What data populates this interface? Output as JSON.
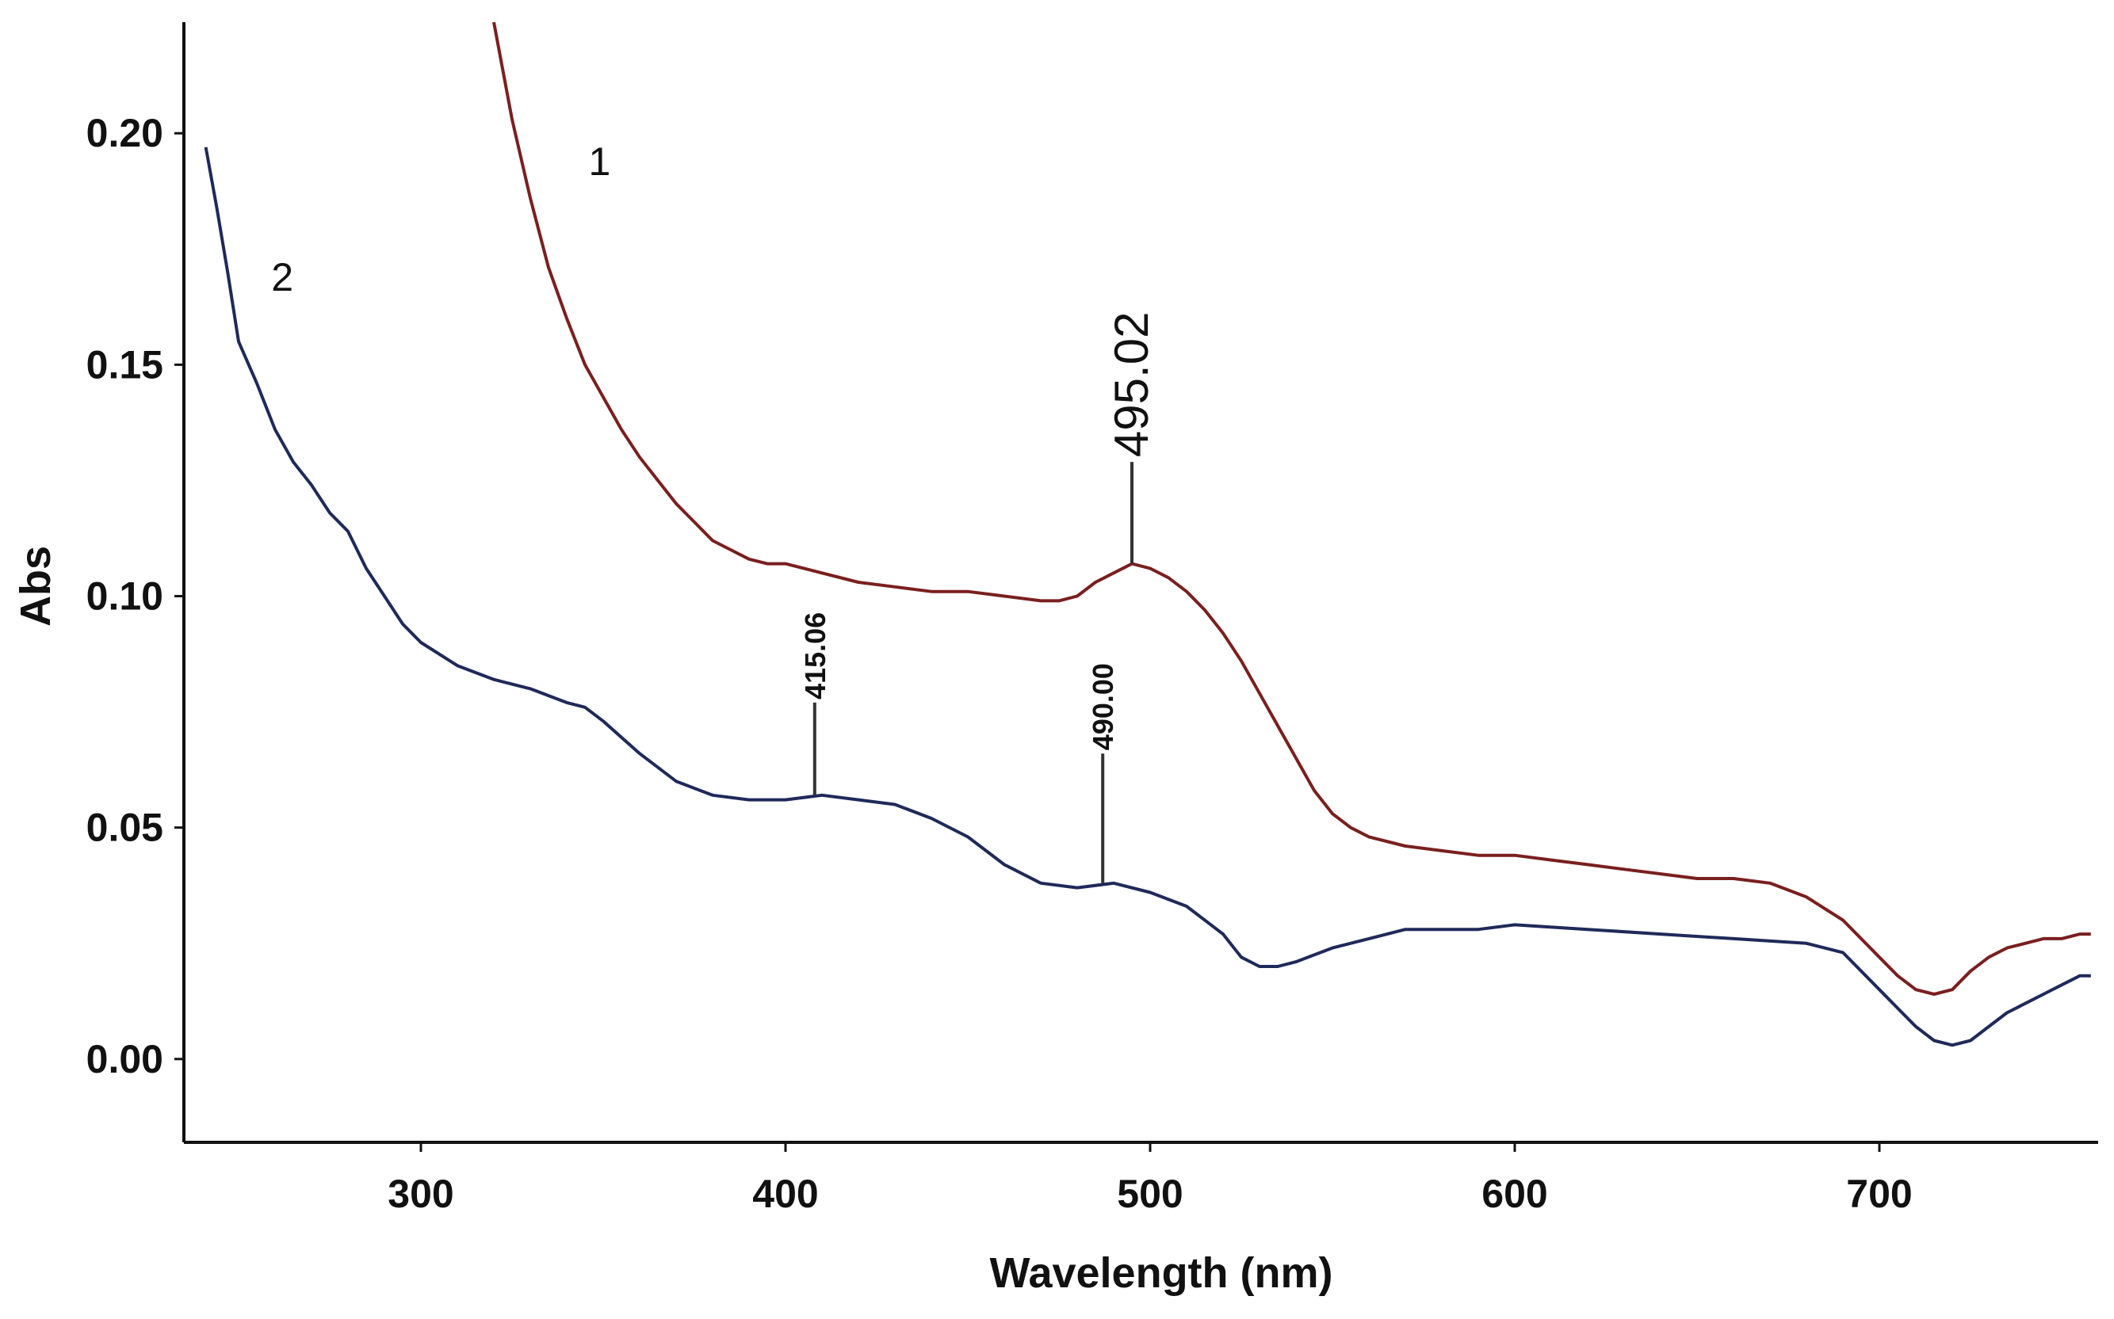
{
  "chart_data": {
    "type": "line",
    "title": "",
    "xlabel": "Wavelength (nm)",
    "ylabel": "Abs",
    "xlim": [
      235,
      760
    ],
    "ylim": [
      -0.018,
      0.224
    ],
    "xticks": [
      300,
      400,
      500,
      600,
      700
    ],
    "yticks": [
      0.0,
      0.05,
      0.1,
      0.15,
      0.2
    ],
    "xtick_labels": [
      "300",
      "400",
      "500",
      "600",
      "700"
    ],
    "ytick_labels": [
      "0.00",
      "0.05",
      "0.10",
      "0.15",
      "0.20"
    ],
    "grid": false,
    "series": [
      {
        "name": "1",
        "label": "1",
        "label_at": [
          349,
          0.191
        ],
        "color": "#7a1f1f",
        "x": [
          320,
          325,
          330,
          335,
          340,
          345,
          350,
          355,
          360,
          365,
          370,
          375,
          380,
          385,
          390,
          395,
          400,
          410,
          420,
          430,
          440,
          450,
          460,
          470,
          475,
          480,
          485,
          490,
          495,
          500,
          505,
          510,
          515,
          520,
          525,
          530,
          535,
          540,
          545,
          550,
          555,
          560,
          570,
          580,
          590,
          600,
          610,
          620,
          630,
          640,
          650,
          660,
          670,
          680,
          690,
          700,
          705,
          710,
          715,
          720,
          725,
          730,
          735,
          740,
          745,
          750,
          755,
          758
        ],
        "y": [
          0.224,
          0.203,
          0.186,
          0.171,
          0.16,
          0.15,
          0.143,
          0.136,
          0.13,
          0.125,
          0.12,
          0.116,
          0.112,
          0.11,
          0.108,
          0.107,
          0.107,
          0.105,
          0.103,
          0.102,
          0.101,
          0.101,
          0.1,
          0.099,
          0.099,
          0.1,
          0.103,
          0.105,
          0.107,
          0.106,
          0.104,
          0.101,
          0.097,
          0.092,
          0.086,
          0.079,
          0.072,
          0.065,
          0.058,
          0.053,
          0.05,
          0.048,
          0.046,
          0.045,
          0.044,
          0.044,
          0.043,
          0.042,
          0.041,
          0.04,
          0.039,
          0.039,
          0.038,
          0.035,
          0.03,
          0.022,
          0.018,
          0.015,
          0.014,
          0.015,
          0.019,
          0.022,
          0.024,
          0.025,
          0.026,
          0.026,
          0.027,
          0.027
        ],
        "annotations": [
          {
            "text": "495.02",
            "x": 495,
            "y_from": 0.107,
            "y_to": 0.129,
            "style": "big"
          }
        ]
      },
      {
        "name": "2",
        "label": "2",
        "label_at": [
          262,
          0.166
        ],
        "color": "#1f2a5a",
        "x": [
          241,
          244,
          247,
          250,
          255,
          260,
          265,
          270,
          275,
          280,
          285,
          290,
          295,
          300,
          310,
          320,
          330,
          340,
          345,
          350,
          360,
          370,
          380,
          390,
          400,
          410,
          420,
          430,
          440,
          450,
          460,
          470,
          480,
          490,
          500,
          510,
          520,
          525,
          530,
          535,
          540,
          550,
          560,
          570,
          580,
          590,
          600,
          620,
          640,
          660,
          680,
          690,
          700,
          705,
          710,
          715,
          720,
          725,
          730,
          735,
          740,
          745,
          750,
          755,
          758
        ],
        "y": [
          0.197,
          0.184,
          0.17,
          0.155,
          0.146,
          0.136,
          0.129,
          0.124,
          0.118,
          0.114,
          0.106,
          0.1,
          0.094,
          0.09,
          0.085,
          0.082,
          0.08,
          0.077,
          0.076,
          0.073,
          0.066,
          0.06,
          0.057,
          0.056,
          0.056,
          0.057,
          0.056,
          0.055,
          0.052,
          0.048,
          0.042,
          0.038,
          0.037,
          0.038,
          0.036,
          0.033,
          0.027,
          0.022,
          0.02,
          0.02,
          0.021,
          0.024,
          0.026,
          0.028,
          0.028,
          0.028,
          0.029,
          0.028,
          0.027,
          0.026,
          0.025,
          0.023,
          0.015,
          0.011,
          0.007,
          0.004,
          0.003,
          0.004,
          0.007,
          0.01,
          0.012,
          0.014,
          0.016,
          0.018,
          0.018
        ],
        "annotations": [
          {
            "text": "415.06",
            "x": 408,
            "y_from": 0.057,
            "y_to": 0.077,
            "style": "small"
          },
          {
            "text": "490.00",
            "x": 487,
            "y_from": 0.038,
            "y_to": 0.066,
            "style": "small"
          }
        ]
      }
    ]
  }
}
